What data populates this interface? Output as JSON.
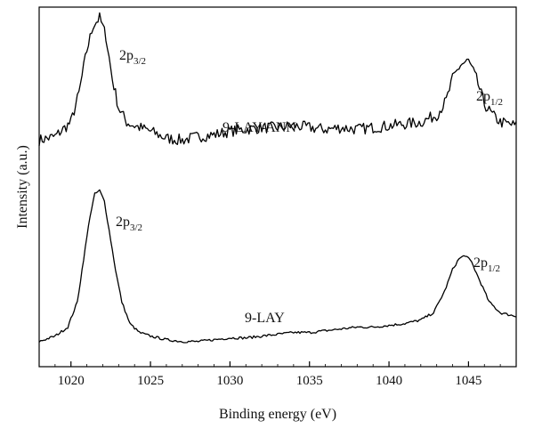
{
  "chart_data": {
    "type": "line",
    "xlabel": "Binding energy (eV)",
    "ylabel": "Intensity (a.u.)",
    "xlim": [
      1018,
      1048
    ],
    "ylim": [
      0,
      100
    ],
    "xticks": [
      "1020",
      "1025",
      "1030",
      "1035",
      "1040",
      "1045"
    ],
    "grid": false,
    "legend": "none",
    "series": [
      {
        "name": "9-LAY-ANN",
        "color": "#000000",
        "x": [
          1018,
          1019,
          1020,
          1020.5,
          1021,
          1021.4,
          1021.8,
          1022.2,
          1022.6,
          1023,
          1023.5,
          1024,
          1025,
          1026,
          1027,
          1028,
          1029,
          1030,
          1031,
          1032,
          1033,
          1034,
          1035,
          1036,
          1037,
          1038,
          1039,
          1040,
          1041,
          1042,
          1043,
          1043.6,
          1044,
          1044.5,
          1045,
          1045.5,
          1046,
          1046.5,
          1047,
          1048
        ],
        "y": [
          63,
          64,
          68,
          76,
          88,
          95,
          97,
          92,
          80,
          72,
          68,
          67,
          65.5,
          63.5,
          63,
          64,
          64.5,
          65.5,
          66,
          66.5,
          66.5,
          67,
          66.5,
          66,
          66.5,
          66,
          66.5,
          67,
          67.5,
          68,
          70,
          74,
          80,
          84,
          85,
          80,
          73,
          70,
          68,
          67
        ]
      },
      {
        "name": "9-LAY",
        "color": "#000000",
        "x": [
          1018,
          1019,
          1019.8,
          1020.4,
          1020.8,
          1021.2,
          1021.5,
          1021.8,
          1022.1,
          1022.4,
          1022.8,
          1023.2,
          1023.7,
          1024.3,
          1025,
          1026,
          1027,
          1028,
          1029,
          1030,
          1031,
          1032,
          1033,
          1034,
          1035,
          1036,
          1037,
          1038,
          1039,
          1040,
          1041,
          1042,
          1042.8,
          1043.5,
          1044,
          1044.4,
          1044.8,
          1045.2,
          1045.7,
          1046.3,
          1047,
          1048
        ],
        "y": [
          7,
          8.5,
          11,
          18,
          30,
          42,
          48,
          49,
          46,
          38,
          27,
          18,
          12,
          9.5,
          8.5,
          7.5,
          7,
          7,
          7.5,
          8,
          8,
          8.5,
          9,
          9.5,
          9.5,
          10,
          10.5,
          11,
          11,
          11.5,
          12,
          13,
          15,
          21,
          27,
          30,
          31,
          29,
          24,
          18,
          15,
          14
        ]
      }
    ],
    "annotations": {
      "ann_peak1": {
        "base": "2p",
        "sub": "3/2"
      },
      "ann_peak2": {
        "base": "2p",
        "sub": "1/2"
      },
      "ann_name": "9-LAY-ANN",
      "lay_peak1": {
        "base": "2p",
        "sub": "3/2"
      },
      "lay_peak2": {
        "base": "2p",
        "sub": "1/2"
      },
      "lay_name": "9-LAY"
    }
  }
}
